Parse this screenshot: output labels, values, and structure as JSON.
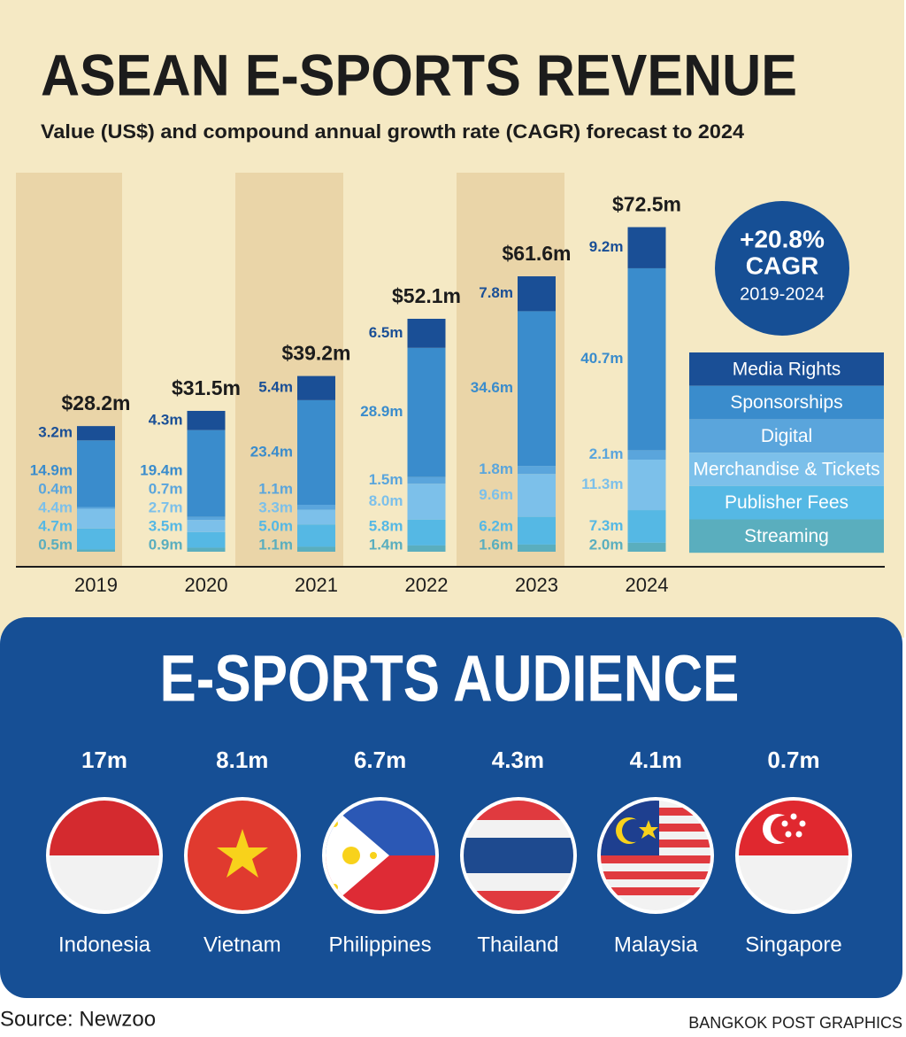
{
  "header": {
    "title": "ASEAN E-SPORTS REVENUE",
    "subtitle": "Value (US$) and compound annual growth rate (CAGR) forecast to 2024"
  },
  "cagr": {
    "value": "+20.8%",
    "label": "CAGR",
    "period": "2019-2024"
  },
  "chart_data": [
    {
      "type": "stacked-bar",
      "categories": [
        "2019",
        "2020",
        "2021",
        "2022",
        "2023",
        "2024"
      ],
      "totals": {
        "values": [
          28.2,
          31.5,
          39.2,
          52.1,
          61.6,
          72.5
        ],
        "value_labels": [
          "$28.2m",
          "$31.5m",
          "$39.2m",
          "$52.1m",
          "$61.6m",
          "$72.5m"
        ]
      },
      "series": [
        {
          "name": "Media Rights",
          "color": "#1a4f96",
          "values": [
            3.2,
            4.3,
            5.4,
            6.5,
            7.8,
            9.2
          ],
          "value_labels": [
            "3.2m",
            "4.3m",
            "5.4m",
            "6.5m",
            "7.8m",
            "9.2m"
          ]
        },
        {
          "name": "Sponsorships",
          "color": "#3a8ccc",
          "values": [
            14.9,
            19.4,
            23.4,
            28.9,
            34.6,
            40.7
          ],
          "value_labels": [
            "14.9m",
            "19.4m",
            "23.4m",
            "28.9m",
            "34.6m",
            "40.7m"
          ]
        },
        {
          "name": "Digital",
          "color": "#5aa5dc",
          "values": [
            0.4,
            0.7,
            1.1,
            1.5,
            1.8,
            2.1
          ],
          "value_labels": [
            "0.4m",
            "0.7m",
            "1.1m",
            "1.5m",
            "1.8m",
            "2.1m"
          ]
        },
        {
          "name": "Merchandise & Tickets",
          "color": "#7cc0ea",
          "values": [
            4.4,
            2.7,
            3.3,
            8.0,
            9.6,
            11.3
          ],
          "value_labels": [
            "4.4m",
            "2.7m",
            "3.3m",
            "8.0m",
            "9.6m",
            "11.3m"
          ]
        },
        {
          "name": "Publisher Fees",
          "color": "#55b8e4",
          "values": [
            4.7,
            3.5,
            5.0,
            5.8,
            6.2,
            7.3
          ],
          "value_labels": [
            "4.7m",
            "3.5m",
            "5.0m",
            "5.8m",
            "6.2m",
            "7.3m"
          ]
        },
        {
          "name": "Streaming",
          "color": "#5aaebe",
          "values": [
            0.5,
            0.9,
            1.1,
            1.4,
            1.6,
            2.0
          ],
          "value_labels": [
            "0.5m",
            "0.9m",
            "1.1m",
            "1.4m",
            "1.6m",
            "2.0m"
          ]
        }
      ]
    },
    {
      "type": "pictograph",
      "title": "E-SPORTS AUDIENCE",
      "categories": [
        "Indonesia",
        "Vietnam",
        "Philippines",
        "Thailand",
        "Malaysia",
        "Singapore"
      ],
      "values": [
        17,
        8.1,
        6.7,
        4.3,
        4.1,
        0.7
      ],
      "value_labels": [
        "17m",
        "8.1m",
        "6.7m",
        "4.3m",
        "4.1m",
        "0.7m"
      ]
    }
  ],
  "footer": {
    "source": "Source: Newzoo",
    "credit": "BANGKOK POST GRAPHICS"
  }
}
